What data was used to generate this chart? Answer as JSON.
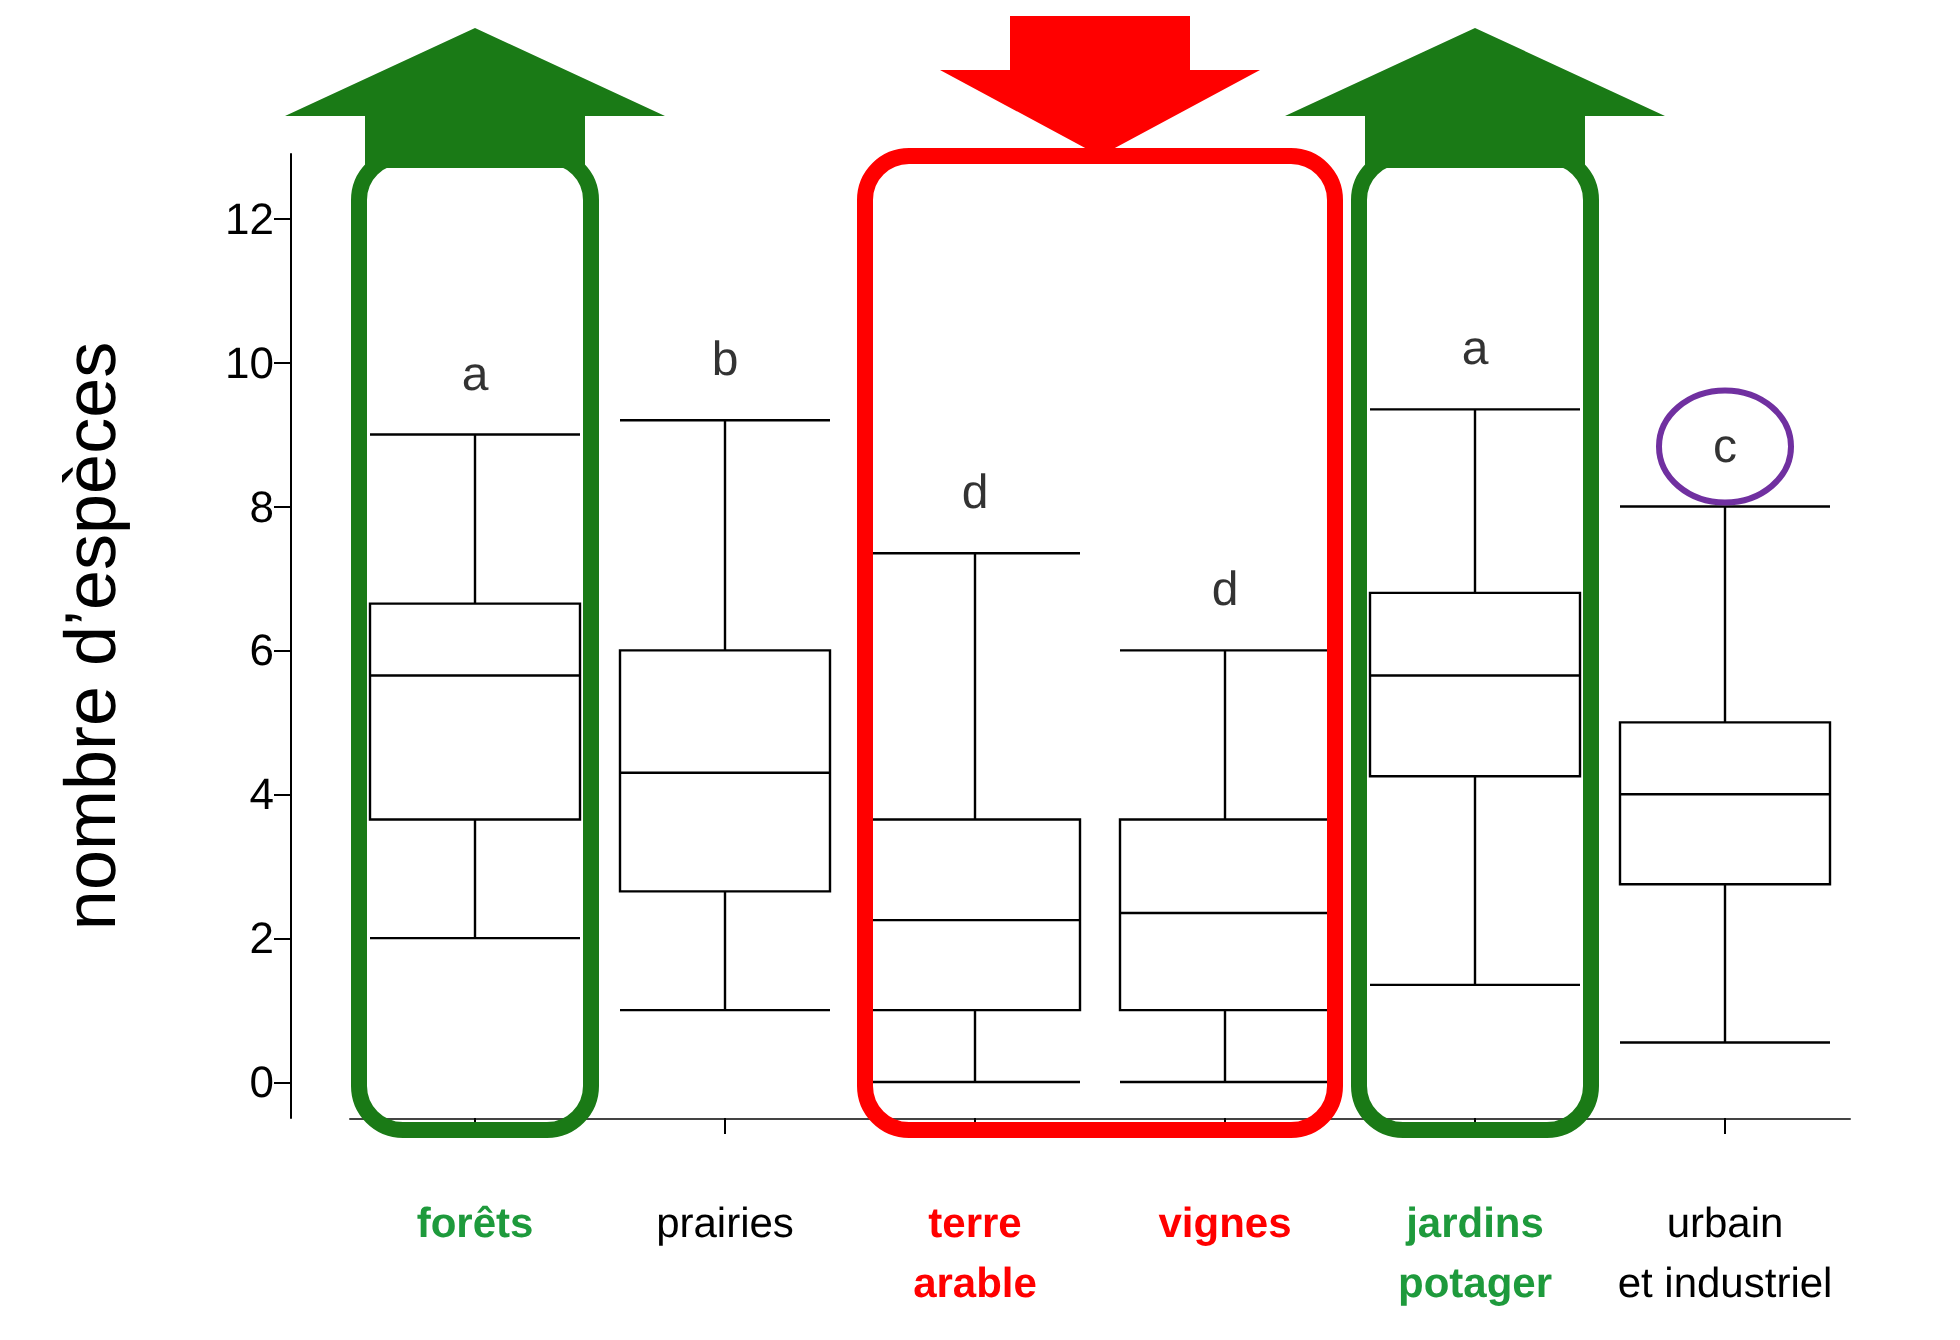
{
  "chart_data": {
    "type": "box",
    "ylabel": "nombre d’espèces",
    "categories": [
      "forêts",
      "prairies",
      "terre\narable",
      "vignes",
      "jardins\npotager",
      "urbain\net industriel"
    ],
    "boxes": [
      {
        "low": 2,
        "q1": 3.65,
        "median": 5.65,
        "q3": 6.65,
        "high": 9
      },
      {
        "low": 1,
        "q1": 2.65,
        "median": 4.3,
        "q3": 6,
        "high": 9.2
      },
      {
        "low": 0,
        "q1": 1,
        "median": 2.25,
        "q3": 3.65,
        "high": 7.35
      },
      {
        "low": 0,
        "q1": 1,
        "median": 2.35,
        "q3": 3.65,
        "high": 6
      },
      {
        "low": 1.35,
        "q1": 4.25,
        "median": 5.65,
        "q3": 6.8,
        "high": 9.35
      },
      {
        "low": 0.55,
        "q1": 2.75,
        "median": 4,
        "q3": 5,
        "high": 8
      }
    ],
    "annotations": [
      "a",
      "b",
      "d",
      "d",
      "a",
      "c"
    ],
    "ylim": [
      -0.5,
      12.9
    ],
    "yticks": [
      0,
      2,
      4,
      6,
      8,
      10,
      12
    ],
    "grid": false
  }
}
